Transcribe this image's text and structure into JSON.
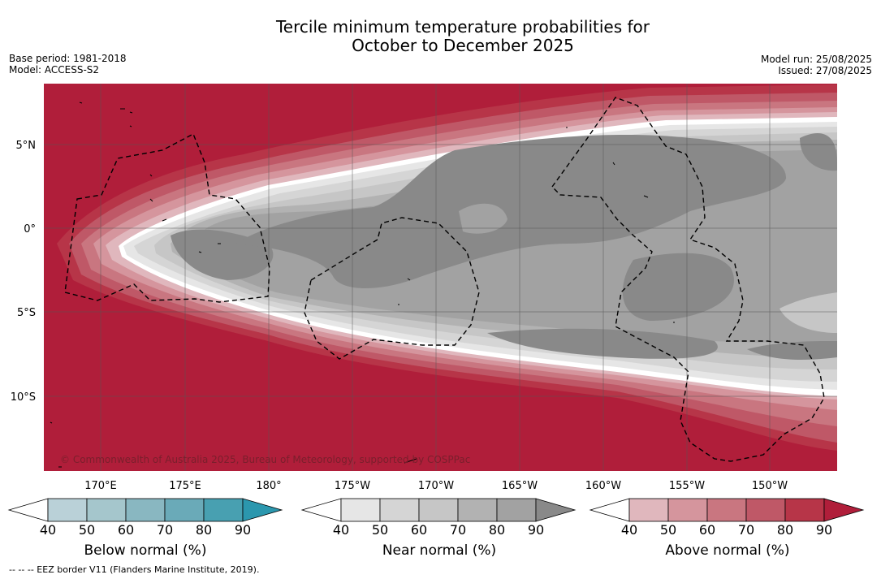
{
  "title_line1": "Tercile minimum temperature probabilities for",
  "title_line2": "October to December 2025",
  "base_period": "Base period: 1981-2018",
  "model": "Model: ACCESS-S2",
  "model_run": "Model run: 25/08/2025",
  "issued": "Issued: 27/08/2025",
  "copyright": "© Commonwealth of Australia 2025, Bureau of Meteorology, supported by COSPPac",
  "footer_note": "--  --  -- EEZ border V11 (Flanders Marine Institute, 2019).",
  "lat_labels": [
    "5°N",
    "0°",
    "5°S",
    "10°S"
  ],
  "lon_labels": [
    "170°E",
    "175°E",
    "180°",
    "175°W",
    "170°W",
    "165°W",
    "160°W",
    "155°W",
    "150°W"
  ],
  "colorbars": [
    {
      "label": "Below normal (%)",
      "ticks": [
        "40",
        "50",
        "60",
        "70",
        "80",
        "90"
      ],
      "colors": [
        "#ffffff",
        "#bad1d8",
        "#a5c6cc",
        "#89b7c1",
        "#6aaab8",
        "#48a0b1",
        "#2b97ae"
      ]
    },
    {
      "label": "Near normal (%)",
      "ticks": [
        "40",
        "50",
        "60",
        "70",
        "80",
        "90"
      ],
      "colors": [
        "#ffffff",
        "#e6e6e6",
        "#d5d5d5",
        "#c6c6c6",
        "#b2b2b2",
        "#a2a2a2",
        "#898989"
      ]
    },
    {
      "label": "Above normal (%)",
      "ticks": [
        "40",
        "50",
        "60",
        "70",
        "80",
        "90"
      ],
      "colors": [
        "#ffffff",
        "#e0b7bd",
        "#d5959d",
        "#c97680",
        "#bf5867",
        "#b73548",
        "#b01e3a"
      ]
    }
  ],
  "map_colors": {
    "above_dark": "#b01e3a",
    "near_mid": "#a2a2a2",
    "near_dark": "#898989"
  }
}
